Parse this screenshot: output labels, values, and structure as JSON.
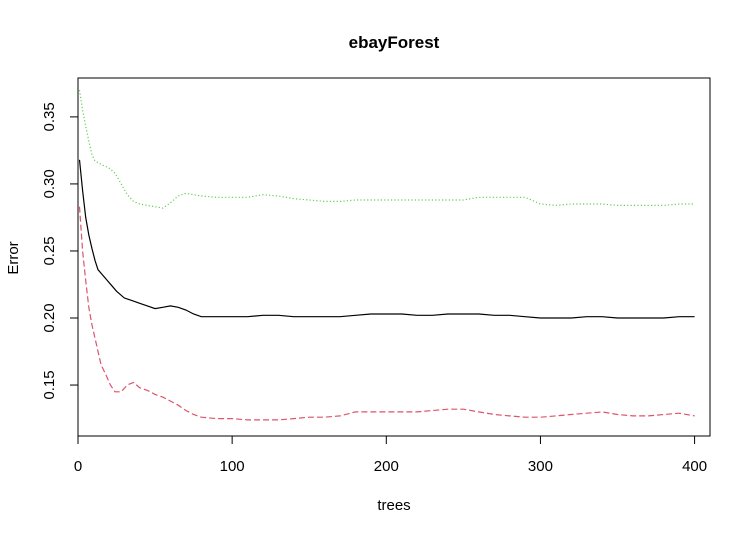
{
  "chart_data": {
    "type": "line",
    "title": "ebayForest",
    "xlabel": "trees",
    "ylabel": "Error",
    "xlim": [
      0,
      410
    ],
    "ylim": [
      0.112,
      0.379
    ],
    "xticks": [
      0,
      100,
      200,
      300,
      400
    ],
    "yticks": [
      0.15,
      0.2,
      0.25,
      0.3,
      0.35
    ],
    "xtick_labels": [
      "0",
      "100",
      "200",
      "300",
      "400"
    ],
    "ytick_labels": [
      "0.15",
      "0.20",
      "0.25",
      "0.30",
      "0.35"
    ],
    "grid": false,
    "legend": "none",
    "series": [
      {
        "style": "solid",
        "color": "#000000",
        "points": [
          [
            1,
            0.318
          ],
          [
            3,
            0.295
          ],
          [
            5,
            0.275
          ],
          [
            7,
            0.262
          ],
          [
            9,
            0.252
          ],
          [
            11,
            0.243
          ],
          [
            13,
            0.236
          ],
          [
            16,
            0.232
          ],
          [
            19,
            0.228
          ],
          [
            22,
            0.224
          ],
          [
            25,
            0.22
          ],
          [
            30,
            0.215
          ],
          [
            35,
            0.213
          ],
          [
            40,
            0.211
          ],
          [
            45,
            0.209
          ],
          [
            50,
            0.207
          ],
          [
            55,
            0.208
          ],
          [
            60,
            0.209
          ],
          [
            65,
            0.208
          ],
          [
            70,
            0.206
          ],
          [
            75,
            0.203
          ],
          [
            80,
            0.201
          ],
          [
            90,
            0.201
          ],
          [
            100,
            0.201
          ],
          [
            110,
            0.201
          ],
          [
            120,
            0.202
          ],
          [
            130,
            0.202
          ],
          [
            140,
            0.201
          ],
          [
            150,
            0.201
          ],
          [
            160,
            0.201
          ],
          [
            170,
            0.201
          ],
          [
            180,
            0.202
          ],
          [
            190,
            0.203
          ],
          [
            200,
            0.203
          ],
          [
            210,
            0.203
          ],
          [
            220,
            0.202
          ],
          [
            230,
            0.202
          ],
          [
            240,
            0.203
          ],
          [
            250,
            0.203
          ],
          [
            260,
            0.203
          ],
          [
            270,
            0.202
          ],
          [
            280,
            0.202
          ],
          [
            290,
            0.201
          ],
          [
            300,
            0.2
          ],
          [
            310,
            0.2
          ],
          [
            320,
            0.2
          ],
          [
            330,
            0.201
          ],
          [
            340,
            0.201
          ],
          [
            350,
            0.2
          ],
          [
            360,
            0.2
          ],
          [
            370,
            0.2
          ],
          [
            380,
            0.2
          ],
          [
            390,
            0.201
          ],
          [
            400,
            0.201
          ]
        ]
      },
      {
        "style": "dashed",
        "color": "#DF536B",
        "points": [
          [
            1,
            0.283
          ],
          [
            3,
            0.25
          ],
          [
            5,
            0.228
          ],
          [
            7,
            0.208
          ],
          [
            9,
            0.195
          ],
          [
            11,
            0.185
          ],
          [
            13,
            0.175
          ],
          [
            15,
            0.165
          ],
          [
            18,
            0.158
          ],
          [
            21,
            0.15
          ],
          [
            24,
            0.145
          ],
          [
            28,
            0.145
          ],
          [
            32,
            0.15
          ],
          [
            36,
            0.152
          ],
          [
            40,
            0.148
          ],
          [
            45,
            0.146
          ],
          [
            50,
            0.143
          ],
          [
            55,
            0.141
          ],
          [
            60,
            0.138
          ],
          [
            65,
            0.135
          ],
          [
            70,
            0.131
          ],
          [
            75,
            0.128
          ],
          [
            80,
            0.126
          ],
          [
            90,
            0.125
          ],
          [
            100,
            0.125
          ],
          [
            110,
            0.124
          ],
          [
            120,
            0.124
          ],
          [
            130,
            0.124
          ],
          [
            140,
            0.125
          ],
          [
            150,
            0.126
          ],
          [
            160,
            0.126
          ],
          [
            170,
            0.127
          ],
          [
            180,
            0.13
          ],
          [
            190,
            0.13
          ],
          [
            200,
            0.13
          ],
          [
            210,
            0.13
          ],
          [
            220,
            0.13
          ],
          [
            230,
            0.131
          ],
          [
            240,
            0.132
          ],
          [
            250,
            0.132
          ],
          [
            260,
            0.13
          ],
          [
            270,
            0.128
          ],
          [
            280,
            0.127
          ],
          [
            290,
            0.126
          ],
          [
            300,
            0.126
          ],
          [
            310,
            0.127
          ],
          [
            320,
            0.128
          ],
          [
            330,
            0.129
          ],
          [
            340,
            0.13
          ],
          [
            350,
            0.128
          ],
          [
            360,
            0.127
          ],
          [
            370,
            0.127
          ],
          [
            380,
            0.128
          ],
          [
            390,
            0.129
          ],
          [
            400,
            0.127
          ]
        ]
      },
      {
        "style": "dotted",
        "color": "#61D04F",
        "points": [
          [
            1,
            0.37
          ],
          [
            3,
            0.355
          ],
          [
            5,
            0.343
          ],
          [
            7,
            0.332
          ],
          [
            9,
            0.322
          ],
          [
            11,
            0.317
          ],
          [
            13,
            0.316
          ],
          [
            16,
            0.314
          ],
          [
            20,
            0.312
          ],
          [
            24,
            0.308
          ],
          [
            28,
            0.3
          ],
          [
            32,
            0.292
          ],
          [
            36,
            0.287
          ],
          [
            40,
            0.285
          ],
          [
            45,
            0.284
          ],
          [
            50,
            0.283
          ],
          [
            55,
            0.282
          ],
          [
            60,
            0.286
          ],
          [
            65,
            0.291
          ],
          [
            70,
            0.293
          ],
          [
            75,
            0.292
          ],
          [
            80,
            0.291
          ],
          [
            90,
            0.29
          ],
          [
            100,
            0.29
          ],
          [
            110,
            0.29
          ],
          [
            120,
            0.292
          ],
          [
            130,
            0.291
          ],
          [
            140,
            0.289
          ],
          [
            150,
            0.288
          ],
          [
            160,
            0.287
          ],
          [
            170,
            0.287
          ],
          [
            180,
            0.288
          ],
          [
            190,
            0.288
          ],
          [
            200,
            0.288
          ],
          [
            210,
            0.288
          ],
          [
            220,
            0.288
          ],
          [
            230,
            0.288
          ],
          [
            240,
            0.288
          ],
          [
            250,
            0.288
          ],
          [
            260,
            0.29
          ],
          [
            270,
            0.29
          ],
          [
            280,
            0.29
          ],
          [
            290,
            0.29
          ],
          [
            300,
            0.285
          ],
          [
            310,
            0.284
          ],
          [
            320,
            0.285
          ],
          [
            330,
            0.285
          ],
          [
            340,
            0.285
          ],
          [
            350,
            0.284
          ],
          [
            360,
            0.284
          ],
          [
            370,
            0.284
          ],
          [
            380,
            0.284
          ],
          [
            390,
            0.285
          ],
          [
            400,
            0.285
          ]
        ]
      }
    ]
  }
}
